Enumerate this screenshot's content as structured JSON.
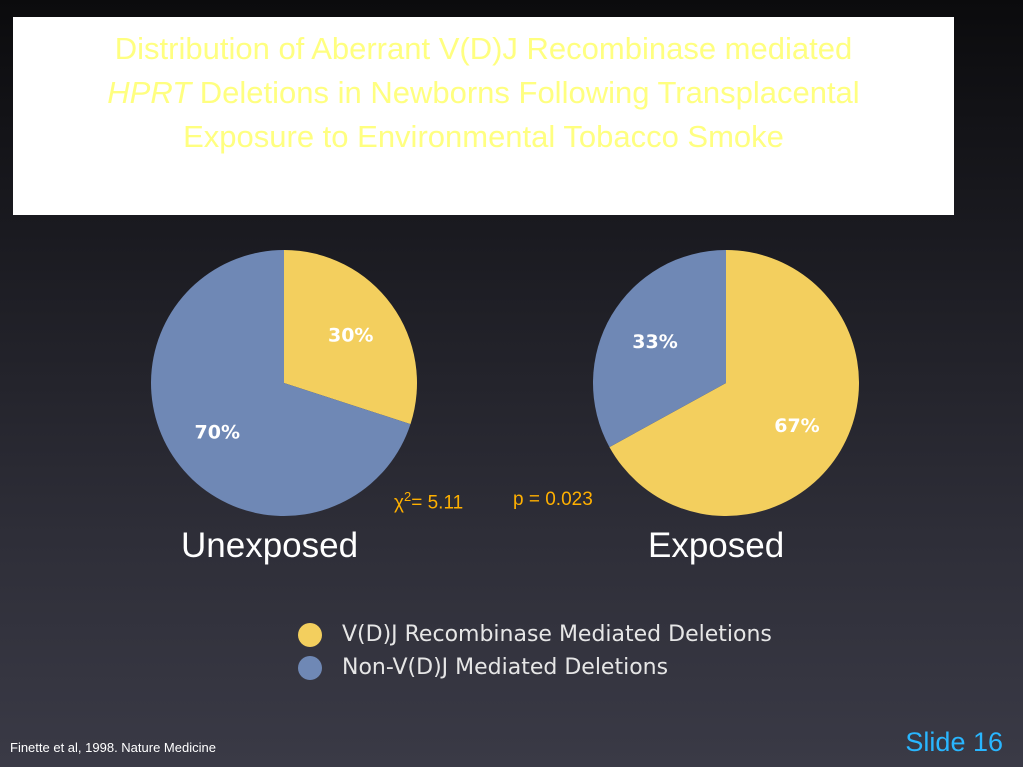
{
  "slide": {
    "title_line1": "Distribution of Aberrant V(D)J Recombinase mediated",
    "title_line2_italic": "HPRT",
    "title_line2_rest": " Deletions in Newborns Following Transplacental",
    "title_line3": "Exposure to Environmental Tobacco Smoke",
    "citation": "Finette et al, 1998. Nature Medicine",
    "slide_number": "Slide 16"
  },
  "stats": {
    "chi_symbol": "χ",
    "chi_superscript": "2",
    "chi_value": "= 5.11",
    "p_value": "p = 0.023"
  },
  "colors": {
    "vdj": "#f3cf5e",
    "non_vdj": "#6f88b5",
    "title_text": "#ffff80",
    "stat_text": "#ffb000",
    "slide_number": "#29b6ff"
  },
  "chart_data": [
    {
      "type": "pie",
      "group": "Unexposed",
      "slices": [
        {
          "label": "V(D)J Recombinase Mediated Deletions",
          "value": 30,
          "display": "30%"
        },
        {
          "label": "Non-V(D)J Mediated Deletions",
          "value": 70,
          "display": "70%"
        }
      ]
    },
    {
      "type": "pie",
      "group": "Exposed",
      "slices": [
        {
          "label": "V(D)J Recombinase Mediated Deletions",
          "value": 67,
          "display": "67%"
        },
        {
          "label": "Non-V(D)J Mediated Deletions",
          "value": 33,
          "display": "33%"
        }
      ]
    }
  ],
  "legend": [
    {
      "label": "V(D)J Recombinase Mediated Deletions",
      "color": "#f3cf5e"
    },
    {
      "label": "Non-V(D)J Mediated Deletions",
      "color": "#6f88b5"
    }
  ]
}
